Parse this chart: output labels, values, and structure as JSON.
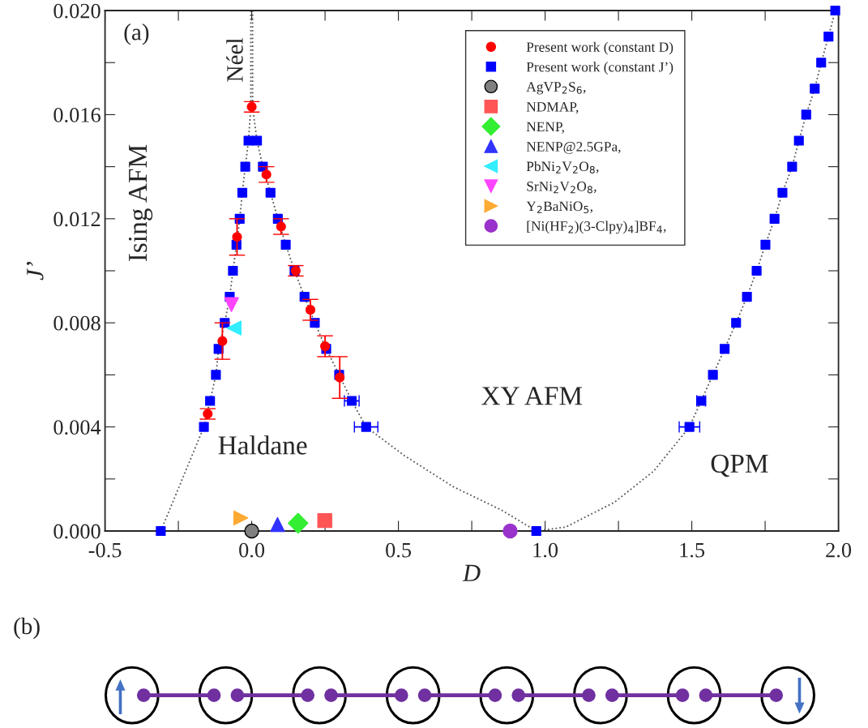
{
  "chart_data": {
    "type": "scatter",
    "xlabel": "D",
    "ylabel": "J’",
    "xlim": [
      -0.5,
      2.0
    ],
    "ylim": [
      0.0,
      0.02
    ],
    "xticks": [
      {
        "value": -0.5,
        "label": "-0.5"
      },
      {
        "value": -0.25,
        "label": null
      },
      {
        "value": 0.0,
        "label": "0.0"
      },
      {
        "value": 0.25,
        "label": null
      },
      {
        "value": 0.5,
        "label": "0.5"
      },
      {
        "value": 0.75,
        "label": null
      },
      {
        "value": 1.0,
        "label": "1.0"
      },
      {
        "value": 1.25,
        "label": null
      },
      {
        "value": 1.5,
        "label": "1.5"
      },
      {
        "value": 1.75,
        "label": null
      },
      {
        "value": 2.0,
        "label": "2.0"
      }
    ],
    "yticks": [
      {
        "value": 0.0,
        "label": "0.000"
      },
      {
        "value": 0.002,
        "label": null
      },
      {
        "value": 0.004,
        "label": "0.004"
      },
      {
        "value": 0.006,
        "label": null
      },
      {
        "value": 0.008,
        "label": "0.008"
      },
      {
        "value": 0.01,
        "label": null
      },
      {
        "value": 0.012,
        "label": "0.012"
      },
      {
        "value": 0.014,
        "label": null
      },
      {
        "value": 0.016,
        "label": "0.016"
      },
      {
        "value": 0.018,
        "label": null
      },
      {
        "value": 0.02,
        "label": "0.020"
      }
    ],
    "grid": false,
    "legend": "top right",
    "annotations": [
      "(a)",
      "Néel",
      "Ising AFM",
      "Haldane",
      "XY AFM",
      "QPM",
      "(b)"
    ],
    "series": [
      {
        "type": "line",
        "color": "#555555",
        "line_style": "dotted",
        "marker": "none",
        "x": [
          -0.31,
          -0.163,
          -0.142,
          -0.122,
          -0.113,
          -0.092,
          -0.075,
          -0.064,
          -0.052,
          -0.041,
          -0.032,
          -0.022,
          -0.011,
          -0.003,
          -0.003
        ],
        "values": [
          0.0,
          0.004,
          0.005,
          0.006,
          0.007,
          0.008,
          0.009,
          0.01,
          0.011,
          0.012,
          0.013,
          0.014,
          0.015,
          0.0163,
          0.02
        ]
      },
      {
        "type": "line",
        "color": "#555555",
        "line_style": "dotted",
        "marker": "none",
        "x": [
          0.003,
          0.003,
          0.018,
          0.038,
          0.064,
          0.089,
          0.116,
          0.146,
          0.18,
          0.215,
          0.254,
          0.298,
          0.341,
          0.39,
          0.52,
          0.687,
          0.852,
          0.97
        ],
        "values": [
          0.02,
          0.0163,
          0.015,
          0.014,
          0.013,
          0.012,
          0.011,
          0.01,
          0.009,
          0.008,
          0.007,
          0.006,
          0.005,
          0.004,
          0.0029,
          0.0017,
          0.0008,
          0.0
        ]
      },
      {
        "type": "line",
        "color": "#555555",
        "line_style": "dotted",
        "marker": "none",
        "x": [
          0.97,
          1.07,
          1.236,
          1.37,
          1.492,
          1.532,
          1.572,
          1.612,
          1.651,
          1.688,
          1.721,
          1.751,
          1.782,
          1.809,
          1.842,
          1.865,
          1.89,
          1.919,
          1.941,
          1.966,
          1.989
        ],
        "values": [
          0.0,
          0.00015,
          0.0011,
          0.0023,
          0.004,
          0.005,
          0.006,
          0.007,
          0.008,
          0.009,
          0.01,
          0.011,
          0.012,
          0.013,
          0.014,
          0.015,
          0.016,
          0.017,
          0.018,
          0.019,
          0.02
        ]
      },
      {
        "name": "Present work (constant D)",
        "color": "#ff0000",
        "marker": "circle",
        "x": [
          -0.15,
          -0.1,
          -0.05,
          0.0,
          0.05,
          0.1,
          0.15,
          0.2,
          0.25,
          0.3
        ],
        "values": [
          0.0045,
          0.0073,
          0.0113,
          0.0163,
          0.0137,
          0.0117,
          0.01,
          0.0085,
          0.0071,
          0.0059
        ],
        "errors": [
          0.0002,
          0.0007,
          0.0007,
          0.0002,
          0.0003,
          0.0003,
          0.0002,
          0.0004,
          0.0004,
          0.0008
        ]
      },
      {
        "name": "Present work (constant J’)",
        "color": "#0000ff",
        "marker": "square",
        "x": [
          -0.31,
          -0.163,
          -0.142,
          -0.122,
          -0.113,
          -0.092,
          -0.075,
          -0.064,
          -0.052,
          -0.041,
          -0.032,
          -0.022,
          -0.011,
          0.018,
          0.038,
          0.064,
          0.089,
          0.116,
          0.146,
          0.18,
          0.215,
          0.254,
          0.298,
          0.341,
          0.39,
          0.97,
          1.492,
          1.532,
          1.572,
          1.612,
          1.651,
          1.688,
          1.721,
          1.751,
          1.782,
          1.809,
          1.842,
          1.865,
          1.89,
          1.919,
          1.941,
          1.966,
          1.989
        ],
        "values": [
          0.0,
          0.004,
          0.005,
          0.006,
          0.007,
          0.008,
          0.009,
          0.01,
          0.011,
          0.012,
          0.013,
          0.014,
          0.015,
          0.015,
          0.014,
          0.013,
          0.012,
          0.011,
          0.01,
          0.009,
          0.008,
          0.007,
          0.006,
          0.005,
          0.004,
          0.0,
          0.004,
          0.005,
          0.006,
          0.007,
          0.008,
          0.009,
          0.01,
          0.011,
          0.012,
          0.013,
          0.014,
          0.015,
          0.016,
          0.017,
          0.018,
          0.019,
          0.02
        ],
        "xerrors": [
          null,
          null,
          null,
          null,
          null,
          null,
          null,
          null,
          null,
          null,
          null,
          null,
          null,
          null,
          null,
          null,
          null,
          null,
          null,
          null,
          null,
          null,
          null,
          0.025,
          0.04,
          null,
          0.035,
          0.015,
          null,
          null,
          null,
          null,
          null,
          null,
          null,
          null,
          null,
          null,
          null,
          null,
          null,
          null,
          null
        ]
      },
      {
        "name": "AgVP$_{2}$S$_{6}$,",
        "color": "#808080",
        "marker": "circle",
        "x": [
          0.0
        ],
        "values": [
          0.0
        ]
      },
      {
        "name": "NDMAP,",
        "color": "#ff5555",
        "marker": "square",
        "x": [
          0.249
        ],
        "values": [
          0.0004
        ]
      },
      {
        "name": "NENP,",
        "color": "#33ee33",
        "marker": "diamond",
        "x": [
          0.158
        ],
        "values": [
          0.0003
        ]
      },
      {
        "name": "NENP@2.5GPa,",
        "color": "#3333ff",
        "marker": "triangle",
        "x": [
          0.088
        ],
        "values": [
          0.00025
        ]
      },
      {
        "name": "PbNi$_{2}$V$_{2}$O$_{8}$,",
        "color": "#33eeff",
        "marker": "triangle-left",
        "x": [
          -0.06
        ],
        "values": [
          0.0078
        ]
      },
      {
        "name": "SrNi$_{2}$V$_{2}$O$_{8}$,",
        "color": "#ff44ff",
        "marker": "triangle-down",
        "x": [
          -0.069
        ],
        "values": [
          0.0087
        ]
      },
      {
        "name": "Y$_{2}$BaNiO$_{5}$,",
        "color": "#ffaa33",
        "marker": "triangle-right",
        "x": [
          -0.037
        ],
        "values": [
          0.0005
        ]
      },
      {
        "name": "[Ni(HF$_{2}$)(3-Clpy)$_{4}$]BF$_{4}$,",
        "color": "#9933cc",
        "marker": "circle",
        "x": [
          0.881
        ],
        "values": [
          0.0
        ]
      }
    ]
  }
}
